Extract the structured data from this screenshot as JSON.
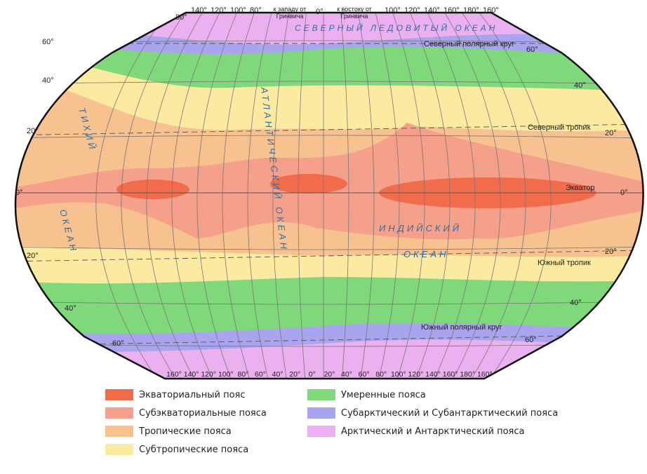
{
  "map": {
    "top_longitudes_west": [
      "140°",
      "120°",
      "100°",
      "80°"
    ],
    "top_longitudes_east": [
      "100°",
      "120°",
      "140°",
      "160°",
      "180°",
      "160°"
    ],
    "west_of_greenwich": "к западу от Гринвича",
    "east_of_greenwich": "к востоку от Гринвича",
    "zero": "0°",
    "bottom_longitudes": [
      "160°",
      "140°",
      "120°",
      "100°",
      "80°",
      "60°",
      "40°",
      "20°",
      "0°",
      "20°",
      "40°",
      "60°",
      "80°",
      "100°",
      "120°",
      "140°",
      "160°",
      "180°",
      "160°"
    ],
    "latitudes_left": [
      "80°",
      "60°",
      "40°",
      "20°",
      "0°",
      "20°",
      "40°",
      "60°"
    ],
    "latitudes_right": [
      "60°",
      "40°",
      "20°",
      "0°",
      "20°",
      "40°",
      "60°"
    ],
    "lines": {
      "arctic_circle": "Северный полярный круг",
      "tropic_north": "Северный тропик",
      "equator": "Экватор",
      "tropic_south": "Южный тропик",
      "antarctic_circle": "Южный полярный круг"
    },
    "oceans": {
      "arctic": "СЕВЕРНЫЙ ЛЕДОВИТЫЙ ОКЕАН",
      "pacific_1": "ТИХИЙ",
      "pacific_2": "ОКЕАН",
      "atlantic": "АТЛАНТИЧЕСКИЙ ОКЕАН",
      "indian_1": "ИНДИЙСКИЙ",
      "indian_2": "ОКЕАН"
    }
  },
  "legend": [
    {
      "label": "Экваториальный пояс",
      "color": "#f26b4a"
    },
    {
      "label": "Субэкваториальные пояса",
      "color": "#f5a08a"
    },
    {
      "label": "Тропические пояса",
      "color": "#f8c290"
    },
    {
      "label": "Субтропические пояса",
      "color": "#fbeaa0"
    },
    {
      "label": "Умеренные пояса",
      "color": "#7fd87a"
    },
    {
      "label": "Субарктический и Субантарктический пояса",
      "color": "#a9a4ee"
    },
    {
      "label": "Арктический и Антарктический пояса",
      "color": "#ebb0f0"
    }
  ]
}
